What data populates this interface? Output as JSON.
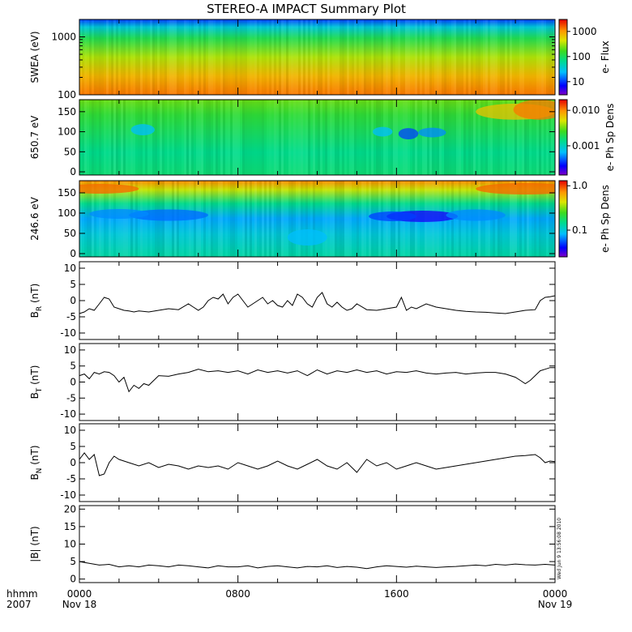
{
  "title": "STEREO-A IMPACT Summary Plot",
  "timestamp": "Wed Jun  9 13:56:08 2010",
  "time_axis": {
    "row1_label": "hhmm",
    "row2_label": "2007",
    "ticks": [
      {
        "hour": 0,
        "label": "0000",
        "date": "Nov 18"
      },
      {
        "hour": 8,
        "label": "0800",
        "date": ""
      },
      {
        "hour": 16,
        "label": "1600",
        "date": ""
      },
      {
        "hour": 24,
        "label": "0000",
        "date": "Nov 19"
      }
    ]
  },
  "chart_data": [
    {
      "type": "heatmap",
      "ylabel": "SWEA (eV)",
      "y_scale": "log",
      "ylim": [
        100,
        2000
      ],
      "y_ticks": [
        {
          "v": 100,
          "label": "100"
        },
        {
          "v": 1000,
          "label": "1000"
        }
      ],
      "colorbar": {
        "label": "e- Flux",
        "scale": "log",
        "range": [
          3,
          3000
        ],
        "ticks": [
          {
            "v": 10,
            "label": "10"
          },
          {
            "v": 100,
            "label": "100"
          },
          {
            "v": 1000,
            "label": "1000"
          }
        ]
      }
    },
    {
      "type": "heatmap",
      "ylabel": "650.7 eV",
      "ylim": [
        -8,
        180
      ],
      "y_ticks": [
        {
          "v": 0,
          "label": "0"
        },
        {
          "v": 50,
          "label": "50"
        },
        {
          "v": 100,
          "label": "100"
        },
        {
          "v": 150,
          "label": "150"
        }
      ],
      "colorbar": {
        "label": "e- Ph Sp Dens",
        "scale": "log",
        "range": [
          0.00015,
          0.02
        ],
        "ticks": [
          {
            "v": 0.001,
            "label": "0.001"
          },
          {
            "v": 0.01,
            "label": "0.010"
          }
        ]
      }
    },
    {
      "type": "heatmap",
      "ylabel": "246.6 eV",
      "ylim": [
        -8,
        180
      ],
      "y_ticks": [
        {
          "v": 0,
          "label": "0"
        },
        {
          "v": 50,
          "label": "50"
        },
        {
          "v": 100,
          "label": "100"
        },
        {
          "v": 150,
          "label": "150"
        }
      ],
      "colorbar": {
        "label": "e- Ph Sp Dens",
        "scale": "log",
        "range": [
          0.025,
          1.3
        ],
        "ticks": [
          {
            "v": 0.1,
            "label": "0.1"
          },
          {
            "v": 1.0,
            "label": "1.0"
          }
        ]
      }
    },
    {
      "type": "line",
      "ylabel": "B",
      "ylabel_sub": "R",
      "ylabel_unit": " (nT)",
      "ylim": [
        -12,
        12
      ],
      "y_ticks": [
        -10,
        -5,
        0,
        5,
        10
      ],
      "x": [
        0,
        0.25,
        0.5,
        0.75,
        1,
        1.25,
        1.5,
        1.75,
        2,
        2.25,
        2.5,
        2.75,
        3,
        3.5,
        4,
        4.5,
        5,
        5.5,
        5.75,
        6,
        6.25,
        6.5,
        6.75,
        7,
        7.25,
        7.5,
        7.75,
        8,
        8.25,
        8.5,
        8.75,
        9,
        9.25,
        9.5,
        9.75,
        10,
        10.25,
        10.5,
        10.75,
        11,
        11.25,
        11.5,
        11.75,
        12,
        12.25,
        12.5,
        12.75,
        13,
        13.25,
        13.5,
        13.75,
        14,
        14.5,
        15,
        15.5,
        16,
        16.25,
        16.5,
        16.75,
        17,
        17.5,
        18,
        18.5,
        19,
        19.5,
        20,
        20.5,
        21,
        21.5,
        22,
        22.5,
        23,
        23.25,
        23.5,
        23.75,
        24
      ],
      "y": [
        -4,
        -3.5,
        -2.5,
        -3,
        -1,
        1,
        0.5,
        -2,
        -2.5,
        -3,
        -3.2,
        -3.5,
        -3.2,
        -3.5,
        -3,
        -2.5,
        -2.8,
        -1,
        -2,
        -3,
        -2,
        0,
        1,
        0.5,
        2,
        -1,
        1,
        2,
        0,
        -2,
        -1,
        0,
        1,
        -1,
        0,
        -1.5,
        -2,
        0,
        -1.5,
        2,
        1,
        -1,
        -2,
        1,
        2.5,
        -1,
        -2,
        -0.5,
        -2,
        -3,
        -2.5,
        -1,
        -2.8,
        -3,
        -2.5,
        -2,
        1,
        -3,
        -2,
        -2.5,
        -1,
        -2,
        -2.5,
        -3,
        -3.3,
        -3.5,
        -3.6,
        -3.8,
        -4,
        -3.5,
        -3,
        -2.8,
        0,
        1,
        1.2,
        1.5
      ]
    },
    {
      "type": "line",
      "ylabel": "B",
      "ylabel_sub": "T",
      "ylabel_unit": " (nT)",
      "ylim": [
        -12,
        12
      ],
      "y_ticks": [
        -10,
        -5,
        0,
        5,
        10
      ],
      "x": [
        0,
        0.25,
        0.5,
        0.75,
        1,
        1.25,
        1.5,
        1.75,
        2,
        2.25,
        2.5,
        2.75,
        3,
        3.25,
        3.5,
        4,
        4.5,
        5,
        5.5,
        6,
        6.5,
        7,
        7.5,
        8,
        8.5,
        9,
        9.5,
        10,
        10.5,
        11,
        11.5,
        12,
        12.5,
        13,
        13.5,
        14,
        14.5,
        15,
        15.5,
        16,
        16.5,
        17,
        17.5,
        18,
        18.5,
        19,
        19.5,
        20,
        20.5,
        21,
        21.5,
        22,
        22.25,
        22.5,
        22.75,
        23,
        23.25,
        23.5,
        23.75,
        24
      ],
      "y": [
        2,
        2.5,
        1,
        3,
        2.5,
        3.2,
        3,
        2,
        0,
        1.5,
        -3,
        -1,
        -2,
        -0.5,
        -1,
        2,
        1.8,
        2.5,
        3,
        4,
        3.2,
        3.5,
        3,
        3.5,
        2.5,
        3.8,
        3,
        3.5,
        2.8,
        3.5,
        2,
        3.8,
        2.5,
        3.5,
        3,
        3.8,
        3,
        3.5,
        2.5,
        3.2,
        3,
        3.5,
        2.8,
        2.5,
        2.8,
        3,
        2.5,
        2.8,
        3,
        3,
        2.5,
        1.5,
        0.5,
        -0.5,
        0.5,
        2,
        3.5,
        4,
        4.5,
        4.5
      ]
    },
    {
      "type": "line",
      "ylabel": "B",
      "ylabel_sub": "N",
      "ylabel_unit": " (nT)",
      "ylim": [
        -12,
        12
      ],
      "y_ticks": [
        -10,
        -5,
        0,
        5,
        10
      ],
      "x": [
        0,
        0.25,
        0.5,
        0.75,
        1,
        1.25,
        1.5,
        1.75,
        2,
        2.5,
        3,
        3.5,
        4,
        4.5,
        5,
        5.5,
        6,
        6.5,
        7,
        7.5,
        8,
        8.5,
        9,
        9.5,
        10,
        10.5,
        11,
        11.5,
        12,
        12.5,
        13,
        13.5,
        14,
        14.5,
        15,
        15.5,
        16,
        16.5,
        17,
        17.5,
        18,
        18.5,
        19,
        19.5,
        20,
        20.5,
        21,
        21.5,
        22,
        22.5,
        23,
        23.25,
        23.5,
        23.75,
        24
      ],
      "y": [
        1,
        3,
        1,
        2.5,
        -4,
        -3.5,
        0,
        2,
        1,
        0,
        -1,
        0,
        -1.5,
        -0.5,
        -1,
        -2,
        -1,
        -1.5,
        -1,
        -2,
        0,
        -1,
        -2,
        -1,
        0.5,
        -1,
        -2,
        -0.5,
        1,
        -1,
        -2,
        0,
        -3,
        1,
        -1,
        0,
        -2,
        -1,
        0,
        -1,
        -2,
        -1.5,
        -1,
        -0.5,
        0,
        0.5,
        1,
        1.5,
        2,
        2.2,
        2.5,
        1.5,
        0,
        0.5,
        0.3
      ]
    },
    {
      "type": "line",
      "ylabel": "|B|",
      "ylabel_sub": "",
      "ylabel_unit": " (nT)",
      "ylim": [
        -1,
        21
      ],
      "y_ticks": [
        0,
        5,
        10,
        15,
        20
      ],
      "x": [
        0,
        0.5,
        1,
        1.5,
        2,
        2.5,
        3,
        3.5,
        4,
        4.5,
        5,
        5.5,
        6,
        6.5,
        7,
        7.5,
        8,
        8.5,
        9,
        9.5,
        10,
        10.5,
        11,
        11.5,
        12,
        12.5,
        13,
        13.5,
        14,
        14.5,
        15,
        15.5,
        16,
        16.5,
        17,
        17.5,
        18,
        18.5,
        19,
        19.5,
        20,
        20.5,
        21,
        21.5,
        22,
        22.5,
        23,
        23.5,
        24
      ],
      "y": [
        5,
        4.5,
        4,
        4.2,
        3.5,
        3.8,
        3.5,
        4,
        3.8,
        3.5,
        4,
        3.8,
        3.5,
        3.2,
        3.8,
        3.5,
        3.5,
        3.8,
        3.2,
        3.6,
        3.8,
        3.5,
        3.2,
        3.6,
        3.5,
        3.8,
        3.3,
        3.6,
        3.4,
        3,
        3.5,
        3.8,
        3.6,
        3.4,
        3.7,
        3.5,
        3.3,
        3.5,
        3.6,
        3.8,
        4,
        3.8,
        4.2,
        4,
        4.3,
        4.1,
        4,
        4.2,
        4
      ]
    }
  ]
}
